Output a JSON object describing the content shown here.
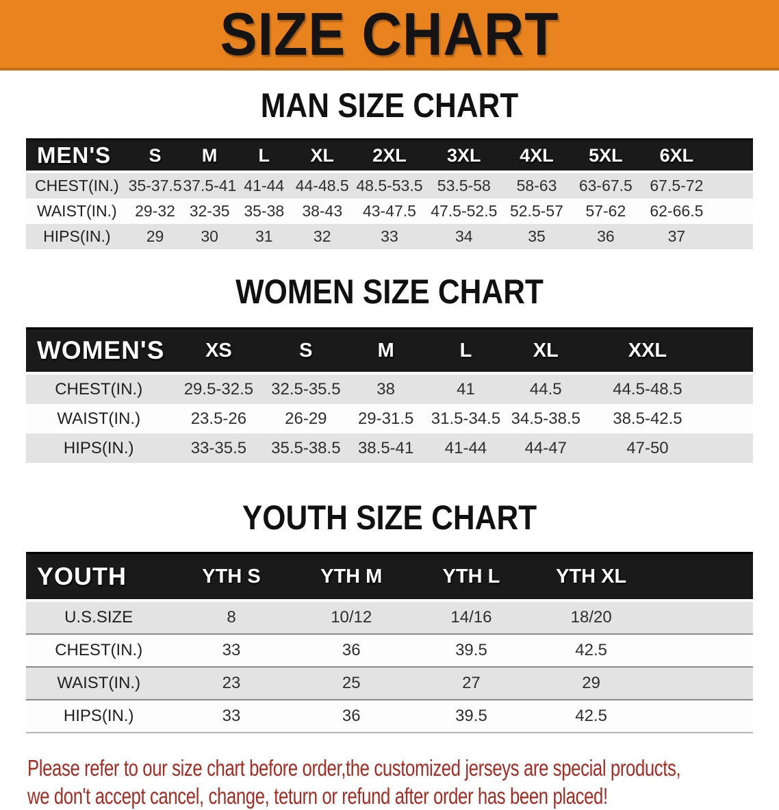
{
  "banner": {
    "title": "SIZE CHART",
    "bg_color": "#E8831E"
  },
  "sections": [
    {
      "id": "men",
      "title": "MAN SIZE CHART",
      "table": {
        "group_label": "MEN'S",
        "columns": [
          "S",
          "M",
          "L",
          "XL",
          "2XL",
          "3XL",
          "4XL",
          "5XL",
          "6XL"
        ],
        "rows": [
          {
            "label": "CHEST(IN.)",
            "values": [
              "35-37.5",
              "37.5-41",
              "41-44",
              "44-48.5",
              "48.5-53.5",
              "53.5-58",
              "58-63",
              "63-67.5",
              "67.5-72"
            ]
          },
          {
            "label": "WAIST(IN.)",
            "values": [
              "29-32",
              "32-35",
              "35-38",
              "38-43",
              "43-47.5",
              "47.5-52.5",
              "52.5-57",
              "57-62",
              "62-66.5"
            ]
          },
          {
            "label": "HIPS(IN.)",
            "values": [
              "29",
              "30",
              "31",
              "32",
              "33",
              "34",
              "35",
              "36",
              "37"
            ]
          }
        ]
      }
    },
    {
      "id": "women",
      "title": "WOMEN SIZE CHART",
      "table": {
        "group_label": "WOMEN'S",
        "columns": [
          "XS",
          "S",
          "M",
          "L",
          "XL",
          "XXL"
        ],
        "rows": [
          {
            "label": "CHEST(IN.)",
            "values": [
              "29.5-32.5",
              "32.5-35.5",
              "38",
              "41",
              "44.5",
              "44.5-48.5"
            ]
          },
          {
            "label": "WAIST(IN.)",
            "values": [
              "23.5-26",
              "26-29",
              "29-31.5",
              "31.5-34.5",
              "34.5-38.5",
              "38.5-42.5"
            ]
          },
          {
            "label": "HIPS(IN.)",
            "values": [
              "33-35.5",
              "35.5-38.5",
              "38.5-41",
              "41-44",
              "44-47",
              "47-50"
            ]
          }
        ]
      }
    },
    {
      "id": "youth",
      "title": "YOUTH SIZE CHART",
      "table": {
        "group_label": "YOUTH",
        "columns": [
          "YTH S",
          "YTH M",
          "YTH L",
          "YTH XL"
        ],
        "rows": [
          {
            "label": "U.S.SIZE",
            "values": [
              "8",
              "10/12",
              "14/16",
              "18/20"
            ]
          },
          {
            "label": "CHEST(IN.)",
            "values": [
              "33",
              "36",
              "39.5",
              "42.5"
            ]
          },
          {
            "label": "WAIST(IN.)",
            "values": [
              "23",
              "25",
              "27",
              "29"
            ]
          },
          {
            "label": "HIPS(IN.)",
            "values": [
              "33",
              "36",
              "39.5",
              "42.5"
            ]
          }
        ]
      }
    }
  ],
  "footer": {
    "line1": "Please refer to our size chart before order,the customized jerseys are special products,",
    "line2": "we don't accept cancel, change, teturn or refund after order has been placed!",
    "text_color": "#A82B22"
  }
}
